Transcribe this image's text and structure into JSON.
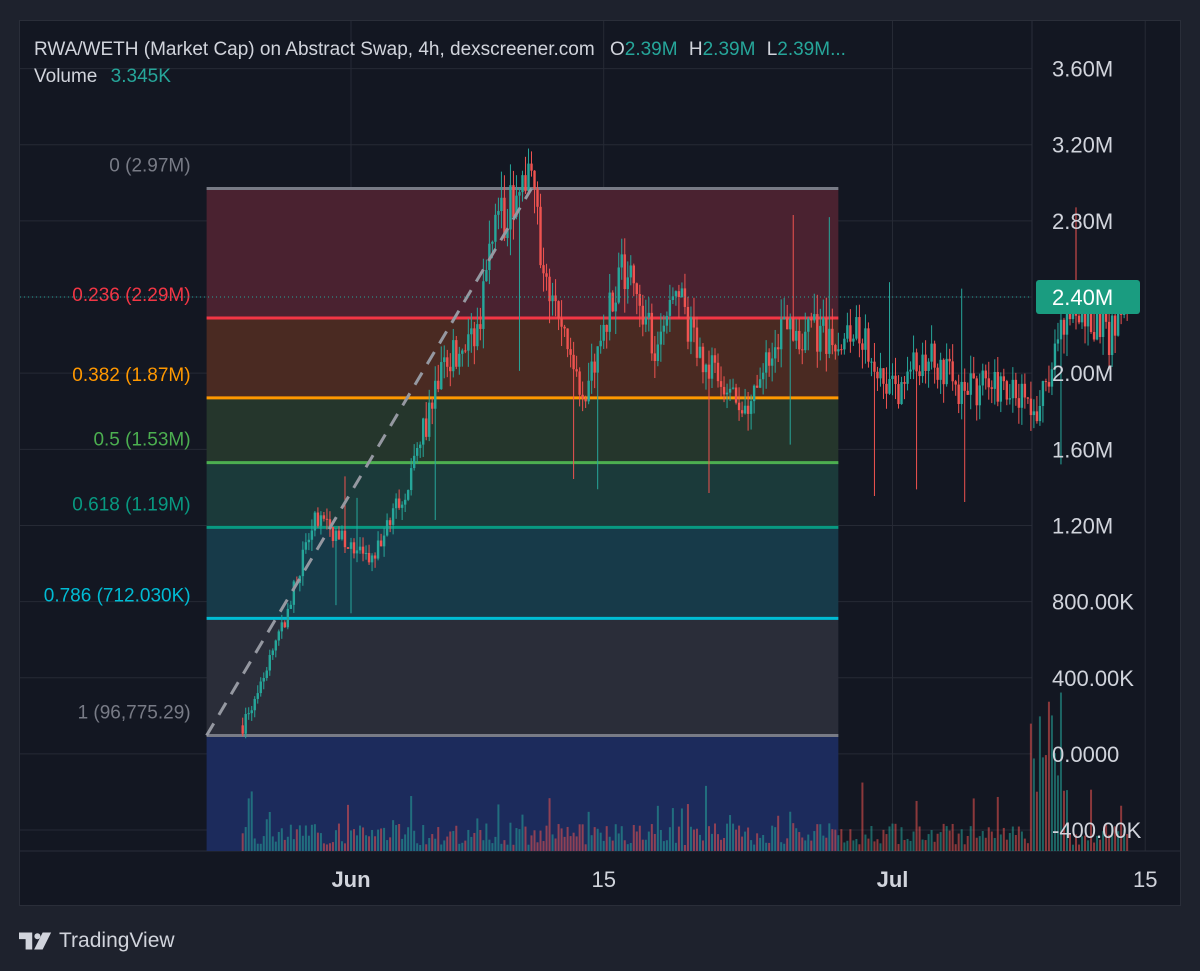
{
  "header": {
    "title": "RWA/WETH (Market Cap) on Abstract Swap, 4h, dexscreener.com",
    "ohlc": [
      {
        "label": "O",
        "value": "2.39M"
      },
      {
        "label": "H",
        "value": "2.39M"
      },
      {
        "label": "L",
        "value": "2.39M..."
      }
    ],
    "volume_label": "Volume",
    "volume_value": "3.345K"
  },
  "footer": {
    "brand": "TradingView"
  },
  "colors": {
    "up": "#26a69a",
    "down": "#ef5350",
    "background": "#131722",
    "frame": "#1e222d",
    "grid": "#262a35",
    "axis_text": "#d1d4dc",
    "price_tag": "#1a9c80"
  },
  "chart_data": {
    "type": "candlestick",
    "timeframe": "4h",
    "x_labels": [
      {
        "text": "Jun",
        "date": "2024-06-01"
      },
      {
        "text": "15",
        "date": "2024-06-15"
      },
      {
        "text": "Jul",
        "date": "2024-07-01"
      },
      {
        "text": "15",
        "date": "2024-07-15"
      }
    ],
    "y_tick_labels": [
      "3.60M",
      "3.20M",
      "2.80M",
      "2.40M",
      "2.00M",
      "1.60M",
      "1.20M",
      "800.00K",
      "400.00K",
      "0.0000",
      "-400.00K"
    ],
    "ylim": [
      -510000,
      3850000
    ],
    "last_price": {
      "value": 2400000,
      "label": "2.40M"
    },
    "fibonacci": {
      "start_date": "2024-05-24",
      "end_date": "2024-06-28",
      "levels": [
        {
          "ratio": "0",
          "value": 2970000,
          "label": "0 (2.97M)",
          "color": "#787b86",
          "fill": "#4a2230"
        },
        {
          "ratio": "0.236",
          "value": 2290000,
          "label": "0.236 (2.29M)",
          "color": "#f23645",
          "fill": "#4a2a22"
        },
        {
          "ratio": "0.382",
          "value": 1870000,
          "label": "0.382 (1.87M)",
          "color": "#ff9800",
          "fill": "#25362c"
        },
        {
          "ratio": "0.5",
          "value": 1530000,
          "label": "0.5 (1.53M)",
          "color": "#4caf50",
          "fill": "#1b3a3a"
        },
        {
          "ratio": "0.618",
          "value": 1190000,
          "label": "0.618 (1.19M)",
          "color": "#089981",
          "fill": "#173a49"
        },
        {
          "ratio": "0.786",
          "value": 712030,
          "label": "0.786 (712.030K)",
          "color": "#00bcd4",
          "fill": "#2a2d39"
        },
        {
          "ratio": "1",
          "value": 96775.29,
          "label": "1 (96,775.29)",
          "color": "#787b86",
          "fill": "#1c2b5c"
        }
      ]
    },
    "trend_line": {
      "start": {
        "date": "2024-05-24",
        "value": 96775
      },
      "end": {
        "date": "2024-06-11",
        "value": 2970000
      },
      "style": "dashed"
    },
    "key_points": [
      {
        "date": "2024-05-26",
        "value": 150000
      },
      {
        "date": "2024-05-28",
        "value": 600000
      },
      {
        "date": "2024-05-30",
        "value": 1250000
      },
      {
        "date": "2024-06-02",
        "value": 1000000
      },
      {
        "date": "2024-06-04",
        "value": 1400000
      },
      {
        "date": "2024-06-06",
        "value": 2000000
      },
      {
        "date": "2024-06-08",
        "value": 2250000
      },
      {
        "date": "2024-06-09",
        "value": 2800000
      },
      {
        "date": "2024-06-11",
        "value": 2970000
      },
      {
        "date": "2024-06-12",
        "value": 2400000
      },
      {
        "date": "2024-06-14",
        "value": 1900000
      },
      {
        "date": "2024-06-16",
        "value": 2600000
      },
      {
        "date": "2024-06-18",
        "value": 2100000
      },
      {
        "date": "2024-06-19",
        "value": 2400000
      },
      {
        "date": "2024-06-21",
        "value": 2000000
      },
      {
        "date": "2024-06-23",
        "value": 1800000
      },
      {
        "date": "2024-06-25",
        "value": 2250000
      },
      {
        "date": "2024-06-27",
        "value": 2200000
      },
      {
        "date": "2024-06-29",
        "value": 2250000
      },
      {
        "date": "2024-07-01",
        "value": 1900000
      },
      {
        "date": "2024-07-03",
        "value": 2100000
      },
      {
        "date": "2024-07-05",
        "value": 1900000
      },
      {
        "date": "2024-07-07",
        "value": 1950000
      },
      {
        "date": "2024-07-09",
        "value": 1800000
      },
      {
        "date": "2024-07-11",
        "value": 2400000
      },
      {
        "date": "2024-07-12",
        "value": 2300000
      },
      {
        "date": "2024-07-13",
        "value": 2200000
      },
      {
        "date": "2024-07-14",
        "value": 2390000
      }
    ]
  }
}
